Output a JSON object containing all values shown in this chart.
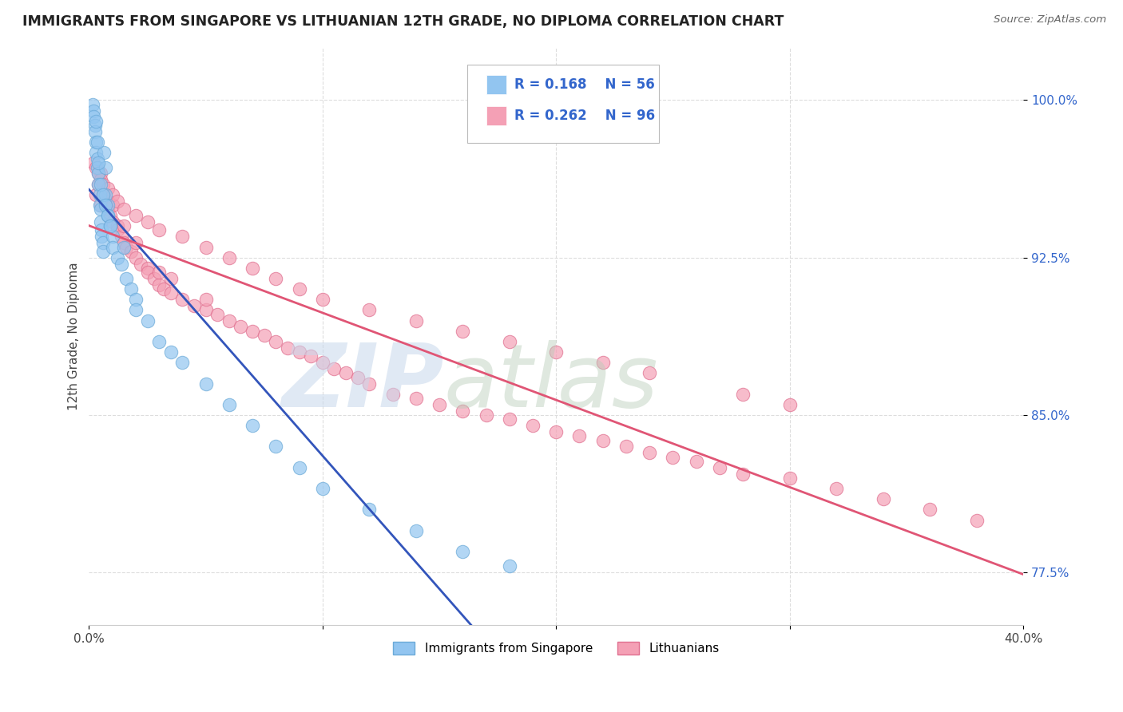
{
  "title": "IMMIGRANTS FROM SINGAPORE VS LITHUANIAN 12TH GRADE, NO DIPLOMA CORRELATION CHART",
  "source": "Source: ZipAtlas.com",
  "ylabel": "12th Grade, No Diploma",
  "xlim": [
    0.0,
    40.0
  ],
  "ylim": [
    75.0,
    102.5
  ],
  "ytick_values": [
    77.5,
    85.0,
    92.5,
    100.0
  ],
  "legend_r1": "R = 0.168",
  "legend_n1": "N = 56",
  "legend_r2": "R = 0.262",
  "legend_n2": "N = 96",
  "legend_label1": "Immigrants from Singapore",
  "legend_label2": "Lithuanians",
  "blue_color": "#92C5F0",
  "blue_edge_color": "#6BAAD8",
  "blue_line_color": "#3355BB",
  "blue_dash_color": "#AABBDD",
  "pink_color": "#F4A0B5",
  "pink_edge_color": "#E07090",
  "pink_line_color": "#E05575",
  "stat_color": "#3366CC",
  "title_color": "#222222",
  "source_color": "#666666",
  "ylabel_color": "#444444",
  "ytick_color": "#3366CC",
  "background": "#FFFFFF",
  "grid_color": "#DDDDDD",
  "blue_x": [
    0.15,
    0.2,
    0.2,
    0.25,
    0.25,
    0.3,
    0.3,
    0.35,
    0.35,
    0.4,
    0.4,
    0.45,
    0.45,
    0.5,
    0.5,
    0.55,
    0.55,
    0.6,
    0.6,
    0.65,
    0.7,
    0.7,
    0.8,
    0.8,
    0.9,
    1.0,
    1.0,
    1.2,
    1.4,
    1.6,
    1.8,
    2.0,
    2.5,
    3.0,
    3.5,
    4.0,
    5.0,
    6.0,
    7.0,
    8.0,
    9.0,
    10.0,
    12.0,
    14.0,
    16.0,
    18.0,
    0.3,
    0.35,
    0.4,
    0.5,
    0.6,
    0.7,
    0.8,
    0.9,
    1.5,
    2.0
  ],
  "blue_y": [
    99.8,
    99.5,
    99.2,
    98.8,
    98.5,
    98.0,
    97.5,
    97.2,
    96.8,
    96.5,
    96.0,
    95.5,
    95.0,
    94.8,
    94.2,
    93.8,
    93.5,
    93.2,
    92.8,
    97.5,
    96.8,
    95.5,
    95.0,
    94.5,
    94.0,
    93.5,
    93.0,
    92.5,
    92.2,
    91.5,
    91.0,
    90.5,
    89.5,
    88.5,
    88.0,
    87.5,
    86.5,
    85.5,
    84.5,
    83.5,
    82.5,
    81.5,
    80.5,
    79.5,
    78.5,
    77.8,
    99.0,
    98.0,
    97.0,
    96.0,
    95.5,
    95.0,
    94.5,
    94.0,
    93.0,
    90.0
  ],
  "pink_x": [
    0.3,
    0.4,
    0.5,
    0.5,
    0.6,
    0.7,
    0.8,
    0.8,
    0.9,
    1.0,
    1.0,
    1.2,
    1.2,
    1.4,
    1.5,
    1.5,
    1.6,
    1.8,
    2.0,
    2.0,
    2.2,
    2.5,
    2.5,
    2.8,
    3.0,
    3.0,
    3.2,
    3.5,
    3.5,
    4.0,
    4.5,
    5.0,
    5.0,
    5.5,
    6.0,
    6.5,
    7.0,
    7.5,
    8.0,
    8.5,
    9.0,
    9.5,
    10.0,
    10.5,
    11.0,
    11.5,
    12.0,
    13.0,
    14.0,
    15.0,
    16.0,
    17.0,
    18.0,
    19.0,
    20.0,
    21.0,
    22.0,
    23.0,
    24.0,
    25.0,
    26.0,
    27.0,
    28.0,
    30.0,
    32.0,
    34.0,
    36.0,
    38.0,
    0.2,
    0.3,
    0.4,
    0.5,
    0.6,
    0.8,
    1.0,
    1.2,
    1.5,
    2.0,
    2.5,
    3.0,
    4.0,
    5.0,
    6.0,
    7.0,
    8.0,
    9.0,
    10.0,
    12.0,
    14.0,
    16.0,
    18.0,
    20.0,
    22.0,
    24.0,
    28.0,
    30.0
  ],
  "pink_y": [
    95.5,
    96.0,
    96.5,
    95.0,
    95.5,
    95.0,
    94.8,
    95.2,
    94.5,
    94.2,
    95.0,
    94.0,
    93.8,
    93.5,
    93.2,
    94.0,
    93.0,
    92.8,
    92.5,
    93.2,
    92.2,
    92.0,
    91.8,
    91.5,
    91.2,
    91.8,
    91.0,
    90.8,
    91.5,
    90.5,
    90.2,
    90.0,
    90.5,
    89.8,
    89.5,
    89.2,
    89.0,
    88.8,
    88.5,
    88.2,
    88.0,
    87.8,
    87.5,
    87.2,
    87.0,
    86.8,
    86.5,
    86.0,
    85.8,
    85.5,
    85.2,
    85.0,
    84.8,
    84.5,
    84.2,
    84.0,
    83.8,
    83.5,
    83.2,
    83.0,
    82.8,
    82.5,
    82.2,
    82.0,
    81.5,
    81.0,
    80.5,
    80.0,
    97.0,
    96.8,
    96.5,
    96.2,
    96.0,
    95.8,
    95.5,
    95.2,
    94.8,
    94.5,
    94.2,
    93.8,
    93.5,
    93.0,
    92.5,
    92.0,
    91.5,
    91.0,
    90.5,
    90.0,
    89.5,
    89.0,
    88.5,
    88.0,
    87.5,
    87.0,
    86.0,
    85.5
  ]
}
